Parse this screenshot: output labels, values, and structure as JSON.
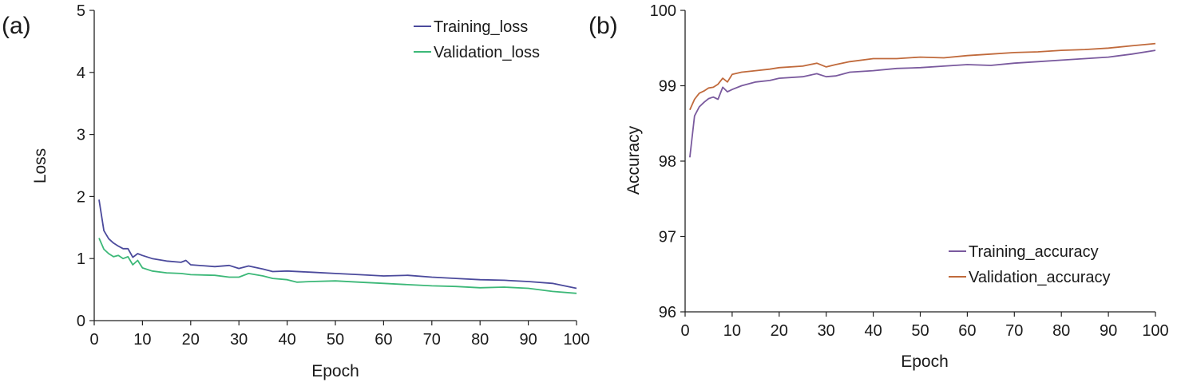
{
  "chart_data": [
    {
      "type": "line",
      "panel_label": "(a)",
      "xlabel": "Epoch",
      "ylabel": "Loss",
      "xlim": [
        0,
        100
      ],
      "ylim": [
        0,
        5
      ],
      "xticks": [
        0,
        10,
        20,
        30,
        40,
        50,
        60,
        70,
        80,
        90,
        100
      ],
      "yticks": [
        0,
        1,
        2,
        3,
        4,
        5
      ],
      "grid": false,
      "legend_position": "top-right",
      "series": [
        {
          "name": "Training_loss",
          "color": "#4b4a9c",
          "x": [
            1,
            2,
            3,
            4,
            5,
            6,
            7,
            8,
            9,
            10,
            12,
            15,
            18,
            19,
            20,
            25,
            28,
            30,
            32,
            35,
            37,
            40,
            45,
            50,
            55,
            60,
            65,
            70,
            75,
            80,
            85,
            90,
            95,
            100
          ],
          "y": [
            1.95,
            1.45,
            1.32,
            1.25,
            1.2,
            1.16,
            1.16,
            1.02,
            1.08,
            1.05,
            1.0,
            0.96,
            0.94,
            0.97,
            0.9,
            0.87,
            0.89,
            0.84,
            0.88,
            0.83,
            0.79,
            0.8,
            0.78,
            0.76,
            0.74,
            0.72,
            0.73,
            0.7,
            0.68,
            0.66,
            0.65,
            0.63,
            0.6,
            0.52
          ]
        },
        {
          "name": "Validation_loss",
          "color": "#3cb878",
          "x": [
            1,
            2,
            3,
            4,
            5,
            6,
            7,
            8,
            9,
            10,
            12,
            15,
            18,
            20,
            25,
            28,
            30,
            32,
            35,
            37,
            40,
            42,
            45,
            50,
            55,
            60,
            65,
            70,
            75,
            80,
            85,
            90,
            95,
            100
          ],
          "y": [
            1.33,
            1.15,
            1.08,
            1.03,
            1.05,
            1.0,
            1.03,
            0.9,
            0.97,
            0.85,
            0.8,
            0.77,
            0.76,
            0.74,
            0.73,
            0.7,
            0.7,
            0.76,
            0.72,
            0.68,
            0.66,
            0.62,
            0.63,
            0.64,
            0.62,
            0.6,
            0.58,
            0.56,
            0.55,
            0.53,
            0.54,
            0.52,
            0.47,
            0.44
          ]
        }
      ]
    },
    {
      "type": "line",
      "panel_label": "(b)",
      "xlabel": "Epoch",
      "ylabel": "Accuracy",
      "xlim": [
        0,
        100
      ],
      "ylim": [
        96,
        100
      ],
      "xticks": [
        0,
        10,
        20,
        30,
        40,
        50,
        60,
        70,
        80,
        90,
        100
      ],
      "yticks": [
        96,
        97,
        98,
        99,
        100
      ],
      "grid": false,
      "legend_position": "bottom-right",
      "series": [
        {
          "name": "Training_accuracy",
          "color": "#7a5a9e",
          "x": [
            1,
            2,
            3,
            4,
            5,
            6,
            7,
            8,
            9,
            10,
            12,
            15,
            18,
            20,
            25,
            28,
            30,
            32,
            35,
            40,
            45,
            50,
            55,
            60,
            65,
            70,
            75,
            80,
            85,
            90,
            95,
            100
          ],
          "y": [
            98.05,
            98.6,
            98.72,
            98.78,
            98.83,
            98.85,
            98.82,
            98.98,
            98.92,
            98.95,
            99.0,
            99.05,
            99.07,
            99.1,
            99.12,
            99.16,
            99.12,
            99.13,
            99.18,
            99.2,
            99.23,
            99.24,
            99.26,
            99.28,
            99.27,
            99.3,
            99.32,
            99.34,
            99.36,
            99.38,
            99.42,
            99.47
          ]
        },
        {
          "name": "Validation_accuracy",
          "color": "#c06a3c",
          "x": [
            1,
            2,
            3,
            4,
            5,
            6,
            7,
            8,
            9,
            10,
            12,
            15,
            18,
            20,
            25,
            28,
            30,
            32,
            35,
            40,
            45,
            50,
            55,
            60,
            65,
            70,
            75,
            80,
            85,
            90,
            95,
            100
          ],
          "y": [
            98.68,
            98.82,
            98.9,
            98.93,
            98.97,
            98.98,
            99.02,
            99.1,
            99.05,
            99.15,
            99.18,
            99.2,
            99.22,
            99.24,
            99.26,
            99.3,
            99.25,
            99.28,
            99.32,
            99.36,
            99.36,
            99.38,
            99.37,
            99.4,
            99.42,
            99.44,
            99.45,
            99.47,
            99.48,
            99.5,
            99.53,
            99.56
          ]
        }
      ]
    }
  ]
}
